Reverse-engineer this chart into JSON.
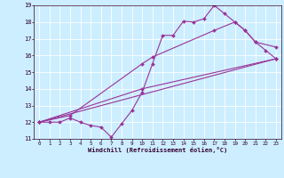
{
  "xlabel": "Windchill (Refroidissement éolien,°C)",
  "xlim": [
    -0.5,
    23.5
  ],
  "ylim": [
    11,
    19
  ],
  "yticks": [
    11,
    12,
    13,
    14,
    15,
    16,
    17,
    18,
    19
  ],
  "xticks": [
    0,
    1,
    2,
    3,
    4,
    5,
    6,
    7,
    8,
    9,
    10,
    11,
    12,
    13,
    14,
    15,
    16,
    17,
    18,
    19,
    20,
    21,
    22,
    23
  ],
  "background_color": "#cceeff",
  "line_color": "#993399",
  "line_width": 0.8,
  "marker": "D",
  "marker_size": 2.0,
  "lines": [
    {
      "x": [
        0,
        1,
        2,
        3,
        4,
        5,
        6,
        7,
        8,
        9,
        10,
        11,
        12,
        13,
        14,
        15,
        16,
        17,
        18,
        19,
        20,
        21,
        22,
        23
      ],
      "y": [
        12,
        12,
        12,
        12.25,
        12,
        11.8,
        11.7,
        11.1,
        11.9,
        12.7,
        13.8,
        15.5,
        17.2,
        17.2,
        18.05,
        18.0,
        18.2,
        19.0,
        18.5,
        18.0,
        17.5,
        16.8,
        16.3,
        15.8
      ]
    },
    {
      "x": [
        0,
        23
      ],
      "y": [
        12,
        15.8
      ]
    },
    {
      "x": [
        0,
        10,
        23
      ],
      "y": [
        12,
        14.0,
        15.8
      ]
    },
    {
      "x": [
        0,
        3,
        10,
        11,
        17,
        19,
        20,
        21,
        23
      ],
      "y": [
        12,
        12.4,
        15.5,
        15.9,
        17.5,
        18.0,
        17.5,
        16.8,
        16.5
      ]
    }
  ]
}
